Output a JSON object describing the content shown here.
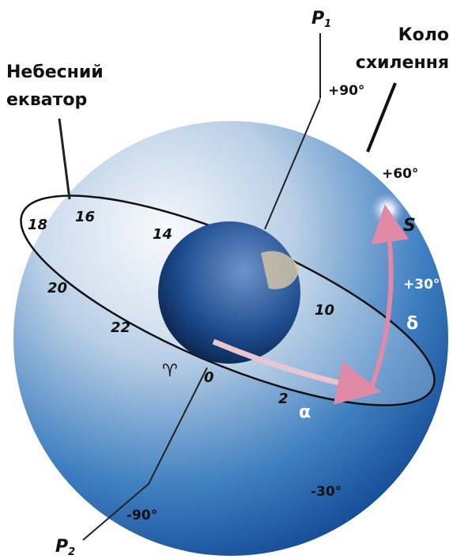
{
  "labels": {
    "celestial_equator": [
      "Небесний",
      "екватор"
    ],
    "declination_circle": [
      "Коло",
      "схилення"
    ]
  },
  "poles": {
    "north": {
      "letter": "P",
      "index": "1"
    },
    "south": {
      "letter": "P",
      "index": "2"
    }
  },
  "declination_marks": [
    "+90°",
    "+60°",
    "+30°",
    "-30°",
    "-90°"
  ],
  "star": "S",
  "delta": "δ",
  "alpha": "α",
  "vernal_equinox": "♈",
  "hours": [
    "18",
    "16",
    "14",
    "20",
    "22",
    "10",
    "0",
    "2"
  ]
}
